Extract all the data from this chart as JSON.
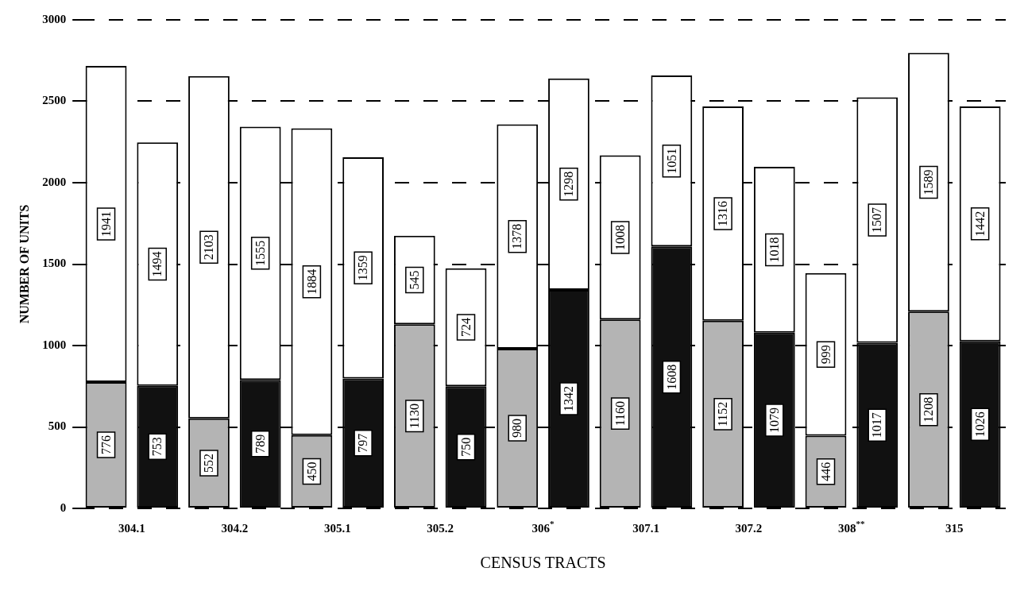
{
  "chart_data": {
    "type": "bar",
    "stacked": true,
    "xlabel": "CENSUS TRACTS",
    "ylabel": "NUMBER OF UNITS",
    "categories": [
      "304.1",
      null,
      "304.2",
      null,
      "305.1",
      null,
      "305.2",
      null,
      "306$^{*}$",
      null,
      "307.1",
      null,
      "307.2",
      null,
      "308$^{**}$",
      null,
      "315",
      null
    ],
    "series": [
      {
        "colors": [
          "#b4b4b4",
          "#111111",
          "#b4b4b4",
          "#111111",
          "#b4b4b4",
          "#111111",
          "#b4b4b4",
          "#111111",
          "#b4b4b4",
          "#111111",
          "#b4b4b4",
          "#111111",
          "#b4b4b4",
          "#111111",
          "#b4b4b4",
          "#111111",
          "#b4b4b4",
          "#111111"
        ],
        "values": [
          776,
          753,
          552,
          789,
          450,
          797,
          1130,
          750,
          980,
          1342,
          1160,
          1608,
          1152,
          1079,
          446,
          1017,
          1208,
          1026
        ]
      },
      {
        "color": "#ffffff",
        "values": [
          1941,
          1494,
          2103,
          1555,
          1884,
          1359,
          545,
          724,
          1378,
          1298,
          1008,
          1051,
          1316,
          1018,
          999,
          1507,
          1589,
          1442
        ]
      }
    ],
    "ylim": [
      0,
      3000
    ],
    "yticks": [
      0,
      500,
      1000,
      1500,
      2000,
      2500,
      3000
    ],
    "grid": "y",
    "data_labels": true
  }
}
